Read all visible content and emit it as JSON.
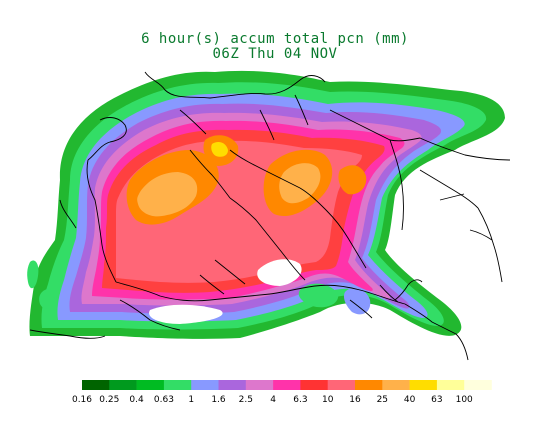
{
  "title": {
    "line1": "6 hour(s) accum total pcn (mm)",
    "line2": "06Z Thu 04 NOV"
  },
  "legend": {
    "thresholds": [
      "0.16",
      "0.25",
      "0.4",
      "0.63",
      "1",
      "1.6",
      "2.5",
      "4",
      "6.3",
      "10",
      "16",
      "25",
      "40",
      "63",
      "100"
    ],
    "colors": [
      "#006400",
      "#009a1e",
      "#00bb22",
      "#33dd66",
      "#8899ff",
      "#aa66dd",
      "#dd77cc",
      "#ff33aa",
      "#ff3333",
      "#ff6677",
      "#ff8800",
      "#ffb14a",
      "#ffdd00",
      "#ffff99",
      "#ffffdd"
    ]
  }
}
